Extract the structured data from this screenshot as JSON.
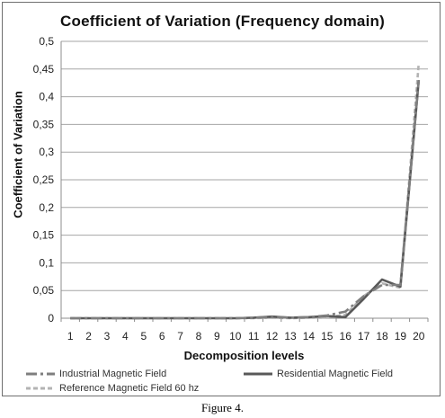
{
  "chart_data": {
    "type": "line",
    "title": "Coefficient of Variation  (Frequency domain)",
    "xlabel": "Decomposition levels",
    "ylabel": "Coefficient of Variation",
    "ylim": [
      0,
      0.5
    ],
    "y_ticks": [
      "0",
      "0,05",
      "0,1",
      "0,15",
      "0,2",
      "0,25",
      "0,3",
      "0,35",
      "0,4",
      "0,45",
      "0,5"
    ],
    "categories": [
      "1",
      "2",
      "3",
      "4",
      "5",
      "6",
      "7",
      "8",
      "9",
      "10",
      "11",
      "12",
      "13",
      "14",
      "15",
      "16",
      "17",
      "18",
      "19",
      "20"
    ],
    "grid": true,
    "legend_position": "bottom",
    "series": [
      {
        "name": "Industrial Magnetic Field",
        "color": "#7f7f7f",
        "style": "dash-dot",
        "values": [
          0,
          0,
          0,
          0,
          0,
          0,
          0,
          0,
          0,
          0,
          0.001,
          0.002,
          0.001,
          0.002,
          0.005,
          0.012,
          0.04,
          0.06,
          0.06,
          0.43
        ]
      },
      {
        "name": "Residential Magnetic Field",
        "color": "#595959",
        "style": "solid",
        "values": [
          0,
          0,
          0,
          0,
          0,
          0,
          0,
          0,
          0,
          0,
          0.001,
          0.003,
          0.001,
          0.002,
          0.004,
          0.002,
          0.035,
          0.07,
          0.057,
          0.43
        ]
      },
      {
        "name": "Reference Magnetic Field 60 hz",
        "color": "#b3b3b3",
        "style": "dashed",
        "values": [
          0,
          0,
          0,
          0,
          0,
          0,
          0,
          0,
          0,
          0,
          0,
          0.001,
          0,
          0.001,
          0.002,
          0.006,
          0.04,
          0.063,
          0.055,
          0.46
        ]
      }
    ]
  },
  "caption": "Figure 4."
}
